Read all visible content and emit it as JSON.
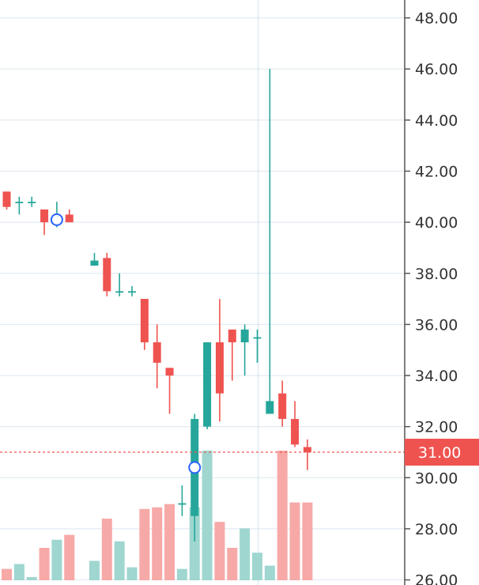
{
  "chart_data": {
    "type": "candlestick",
    "title": "",
    "xlabel": "",
    "ylabel": "",
    "ylim": [
      25.8,
      48.7
    ],
    "y_ticks": [
      "26.00",
      "28.00",
      "30.00",
      "32.00",
      "34.00",
      "36.00",
      "38.00",
      "40.00",
      "42.00",
      "44.00",
      "46.00",
      "48.00"
    ],
    "grid": true,
    "last_price": {
      "value": 31.0,
      "label": "31.00"
    },
    "colors": {
      "up": "#26a69a",
      "down": "#ef5350",
      "volume_up": "#9fd6d0",
      "volume_down": "#f6a9a7",
      "grid": "#e3ebf3",
      "axis": "#555555",
      "price_line": "#ef5350",
      "marker_stroke": "#2962ff",
      "crosshair": "#cfe3ee"
    },
    "candles": [
      {
        "open": 41.2,
        "high": 41.2,
        "low": 40.5,
        "close": 40.6,
        "volume": 0.07
      },
      {
        "open": 40.8,
        "high": 41.0,
        "low": 40.3,
        "close": 40.8,
        "volume": 0.1
      },
      {
        "open": 40.8,
        "high": 41.0,
        "low": 40.6,
        "close": 40.8,
        "volume": 0.02
      },
      {
        "open": 40.5,
        "high": 40.5,
        "low": 39.5,
        "close": 40.0,
        "volume": 0.2
      },
      {
        "open": 40.1,
        "high": 40.8,
        "low": 39.8,
        "close": 40.1,
        "volume": 0.25
      },
      {
        "open": 40.3,
        "high": 40.5,
        "low": 40.0,
        "close": 40.0,
        "volume": 0.28
      },
      null,
      {
        "open": 38.3,
        "high": 38.8,
        "low": 38.3,
        "close": 38.5,
        "volume": 0.12
      },
      {
        "open": 38.6,
        "high": 38.8,
        "low": 37.1,
        "close": 37.3,
        "volume": 0.38
      },
      {
        "open": 37.3,
        "high": 38.0,
        "low": 37.1,
        "close": 37.3,
        "volume": 0.24
      },
      {
        "open": 37.3,
        "high": 37.5,
        "low": 37.1,
        "close": 37.3,
        "volume": 0.08
      },
      {
        "open": 37.0,
        "high": 37.0,
        "low": 35.0,
        "close": 35.3,
        "volume": 0.44
      },
      {
        "open": 35.3,
        "high": 36.0,
        "low": 33.5,
        "close": 34.5,
        "volume": 0.45
      },
      {
        "open": 34.3,
        "high": 34.3,
        "low": 32.5,
        "close": 34.0,
        "volume": 0.47
      },
      {
        "open": 29.0,
        "high": 29.7,
        "low": 28.5,
        "close": 29.0,
        "volume": 0.07
      },
      {
        "open": 28.5,
        "high": 32.5,
        "low": 27.5,
        "close": 32.3,
        "volume": 0.45
      },
      {
        "open": 32.0,
        "high": 35.3,
        "low": 31.9,
        "close": 35.3,
        "volume": 0.8
      },
      {
        "open": 35.3,
        "high": 37.0,
        "low": 32.2,
        "close": 33.3,
        "volume": 0.36
      },
      {
        "open": 35.8,
        "high": 35.8,
        "low": 33.8,
        "close": 35.3,
        "volume": 0.2
      },
      {
        "open": 35.3,
        "high": 36.0,
        "low": 34.0,
        "close": 35.8,
        "volume": 0.32
      },
      {
        "open": 35.5,
        "high": 35.8,
        "low": 34.5,
        "close": 35.5,
        "volume": 0.17
      },
      {
        "open": 32.5,
        "high": 46.0,
        "low": 32.5,
        "close": 33.0,
        "volume": 0.09
      },
      {
        "open": 33.3,
        "high": 33.8,
        "low": 32.0,
        "close": 32.3,
        "volume": 0.8
      },
      {
        "open": 32.3,
        "high": 33.0,
        "low": 31.2,
        "close": 31.3,
        "volume": 0.48
      },
      {
        "open": 31.2,
        "high": 31.5,
        "low": 30.3,
        "close": 31.0,
        "volume": 0.48
      }
    ],
    "markers": [
      {
        "candle_index": 4,
        "price": 40.1
      },
      {
        "candle_index": 15,
        "price": 30.4
      }
    ]
  }
}
